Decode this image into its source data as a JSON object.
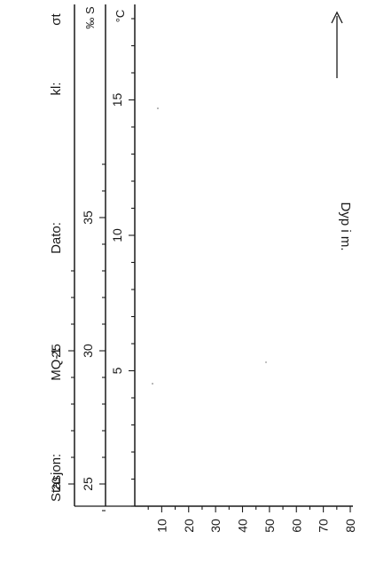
{
  "header": {
    "station_label": "Stasjon:",
    "station_value": "MQ-1",
    "date_label": "Dato:",
    "time_label": "kl:"
  },
  "chart_data": {
    "type": "line",
    "title": "",
    "grid": false,
    "depth_axis": {
      "label": "Dyp i m.",
      "arrow": "→",
      "ticks": [
        10,
        20,
        30,
        40,
        50,
        60,
        70,
        80
      ],
      "range": [
        0,
        80
      ]
    },
    "density_axis": {
      "label": "σt",
      "ticks": [
        20,
        25
      ],
      "range": [
        20,
        28
      ]
    },
    "salinity_axis": {
      "unit": "‰ S",
      "ticks": [
        25,
        30,
        35
      ],
      "range": [
        24,
        37
      ]
    },
    "temperature_axis": {
      "unit": "°C",
      "ticks": [
        5,
        10,
        15
      ],
      "range": [
        0,
        18
      ]
    },
    "series": []
  }
}
